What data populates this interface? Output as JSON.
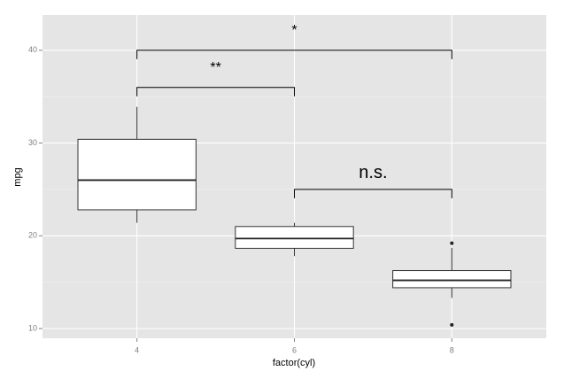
{
  "chart_data": {
    "type": "box",
    "x_label": "factor(cyl)",
    "y_label": "mpg",
    "categories": [
      "4",
      "6",
      "8"
    ],
    "boxes": [
      {
        "min": 21.4,
        "q1": 22.8,
        "median": 26,
        "q3": 30.4,
        "max": 33.9,
        "outliers": []
      },
      {
        "min": 17.8,
        "q1": 18.65,
        "median": 19.7,
        "q3": 21,
        "max": 21.4,
        "outliers": []
      },
      {
        "min": 13.3,
        "q1": 14.4,
        "median": 15.2,
        "q3": 16.25,
        "max": 18.7,
        "outliers": [
          10.4,
          19.2
        ]
      }
    ],
    "ylim": [
      8.95,
      43.8
    ],
    "yticks": [
      10,
      20,
      30,
      40
    ],
    "grid": true,
    "comparisons": [
      {
        "label": "*",
        "y": 40,
        "x": [
          "4",
          "8"
        ]
      },
      {
        "label": "**",
        "y": 36,
        "x": [
          "4",
          "6"
        ]
      },
      {
        "label": "n.s.",
        "y": 25,
        "x": [
          "6",
          "8"
        ]
      }
    ]
  }
}
